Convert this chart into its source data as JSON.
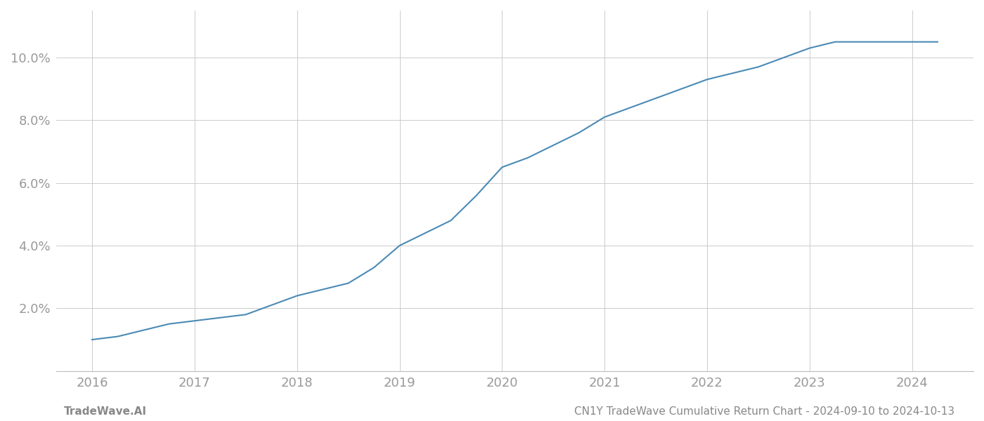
{
  "x_years": [
    2016.0,
    2016.25,
    2016.5,
    2016.75,
    2017.0,
    2017.25,
    2017.5,
    2017.75,
    2018.0,
    2018.25,
    2018.5,
    2018.75,
    2019.0,
    2019.25,
    2019.5,
    2019.75,
    2020.0,
    2020.25,
    2020.5,
    2020.75,
    2021.0,
    2021.25,
    2021.5,
    2021.75,
    2022.0,
    2022.25,
    2022.5,
    2022.75,
    2023.0,
    2023.25,
    2023.5,
    2023.75,
    2024.0,
    2024.25
  ],
  "y_values": [
    0.01,
    0.011,
    0.013,
    0.015,
    0.016,
    0.017,
    0.018,
    0.021,
    0.024,
    0.026,
    0.028,
    0.033,
    0.04,
    0.044,
    0.048,
    0.056,
    0.065,
    0.068,
    0.072,
    0.076,
    0.081,
    0.084,
    0.087,
    0.09,
    0.093,
    0.095,
    0.097,
    0.1,
    0.103,
    0.105,
    0.105,
    0.105,
    0.105,
    0.105
  ],
  "line_color": "#4a8ab5",
  "line_width": 1.5,
  "background_color": "#ffffff",
  "grid_color": "#cccccc",
  "tick_color": "#999999",
  "x_ticks": [
    2016,
    2017,
    2018,
    2019,
    2020,
    2021,
    2022,
    2023,
    2024
  ],
  "y_ticks": [
    0.02,
    0.04,
    0.06,
    0.08,
    0.1
  ],
  "y_tick_labels": [
    "2.0%",
    "4.0%",
    "6.0%",
    "8.0%",
    "10.0%"
  ],
  "xlim": [
    2015.65,
    2024.6
  ],
  "ylim": [
    0.0,
    0.115
  ],
  "footer_left": "TradeWave.AI",
  "footer_right": "CN1Y TradeWave Cumulative Return Chart - 2024-09-10 to 2024-10-13",
  "footer_color": "#888888",
  "footer_fontsize": 11,
  "spine_color": "#bbbbbb"
}
